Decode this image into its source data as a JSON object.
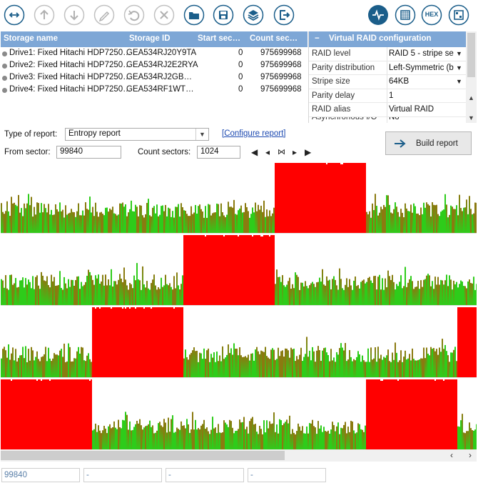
{
  "toolbar": {
    "icons": [
      "sync-icon",
      "arrow-up-icon",
      "arrow-down-icon",
      "pencil-icon",
      "undo-icon",
      "close-icon",
      "folder-open-icon",
      "save-icon",
      "layers-icon",
      "exit-icon",
      "pulse-icon",
      "grid-icon",
      "hex-icon",
      "sectors-icon"
    ],
    "hex_label": "HEX",
    "accent": "#1b5e8a"
  },
  "storage": {
    "headers": [
      "Storage name",
      "Storage ID",
      "Start sec…",
      "Count sec…"
    ],
    "rows": [
      {
        "name": "Drive1: Fixed Hitachi HDP7250…",
        "id": "GEA534RJ20Y9TA",
        "start": "0",
        "count": "975699968"
      },
      {
        "name": "Drive2: Fixed Hitachi HDP7250…",
        "id": "GEA534RJ2E2RYA",
        "start": "0",
        "count": "975699968"
      },
      {
        "name": "Drive3: Fixed Hitachi HDP7250…",
        "id": "GEA534RJ2GB…",
        "start": "0",
        "count": "975699968"
      },
      {
        "name": "Drive4: Fixed Hitachi HDP7250…",
        "id": "GEA534RF1WT…",
        "start": "0",
        "count": "975699968"
      }
    ]
  },
  "raid": {
    "collapse": "−",
    "title": "Virtual RAID configuration",
    "props": [
      {
        "key": "RAID level",
        "value": "RAID 5 - stripe se"
      },
      {
        "key": "Parity distribution",
        "value": "Left-Symmetric (b"
      },
      {
        "key": "Stripe size",
        "value": "64KB"
      },
      {
        "key": "Parity delay",
        "value": "1"
      },
      {
        "key": "RAID alias",
        "value": "Virtual RAID"
      },
      {
        "key": "Asynchronous I/O",
        "value": "No"
      }
    ]
  },
  "report": {
    "type_label": "Type of report:",
    "type_value": "Entropy report",
    "configure": "[Configure report]",
    "from_label": "From sector:",
    "from_value": "99840",
    "count_label": "Count sectors:",
    "count_value": "1024",
    "build": "Build report"
  },
  "entropy_graph": {
    "high_color": "#ff0000",
    "low_colors": [
      "#2ecc1a",
      "#8b7a10"
    ],
    "red_spans_fraction": [
      [
        [
          0.573,
          0.765
        ]
      ],
      [
        [
          0.383,
          0.573
        ]
      ],
      [
        [
          0.19,
          0.383
        ],
        [
          0.957,
          1.0
        ]
      ],
      [
        [
          0.0,
          0.19
        ],
        [
          0.765,
          0.957
        ]
      ]
    ]
  },
  "status": {
    "cells": [
      "99840",
      "-",
      "-",
      "-"
    ]
  }
}
